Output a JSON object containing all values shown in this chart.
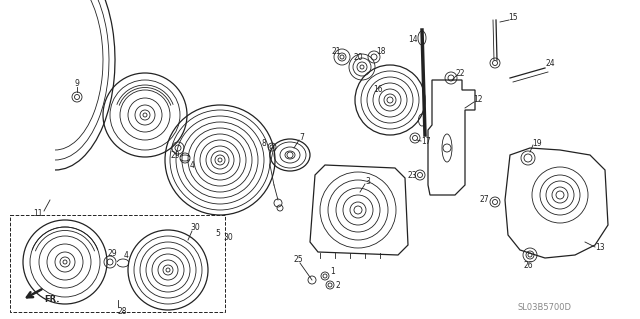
{
  "background_color": "#ffffff",
  "diagram_color": "#222222",
  "watermark": "SL03B5700D",
  "fig_width": 6.4,
  "fig_height": 3.19,
  "dpi": 100
}
